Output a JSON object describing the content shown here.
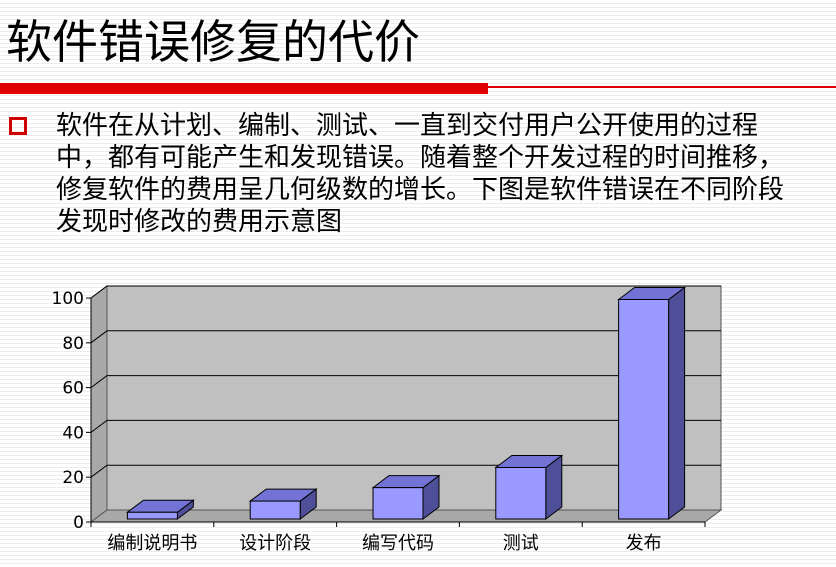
{
  "slide": {
    "title": "软件错误修复的代价",
    "bullet_text": "软件在从计划、编制、测试、一直到交付用户公开使用的过程中，都有可能产生和发现错误。随着整个开发过程的时间推移，修复软件的费用呈几何级数的增长。下图是软件错误在不同阶段发现时修改的费用示意图"
  },
  "colors": {
    "accent_red": "#e00000",
    "bullet_red": "#d00000",
    "plot_wall": "#c0c0c0",
    "plot_floor": "#a8a8a8",
    "bar_front": "#9999ff",
    "bar_top": "#7373d6",
    "bar_side": "#4f4f99"
  },
  "chart_data": {
    "type": "bar",
    "categories": [
      "编制说明书",
      "设计阶段",
      "编写代码",
      "测试",
      "发布"
    ],
    "values": [
      3,
      8,
      14,
      23,
      98
    ],
    "title": "",
    "xlabel": "",
    "ylabel": "",
    "ylim": [
      0,
      100
    ],
    "yticks": [
      "0",
      "20",
      "40",
      "60",
      "80",
      "100"
    ],
    "grid": true,
    "style": "3d-column",
    "legend": "none"
  }
}
